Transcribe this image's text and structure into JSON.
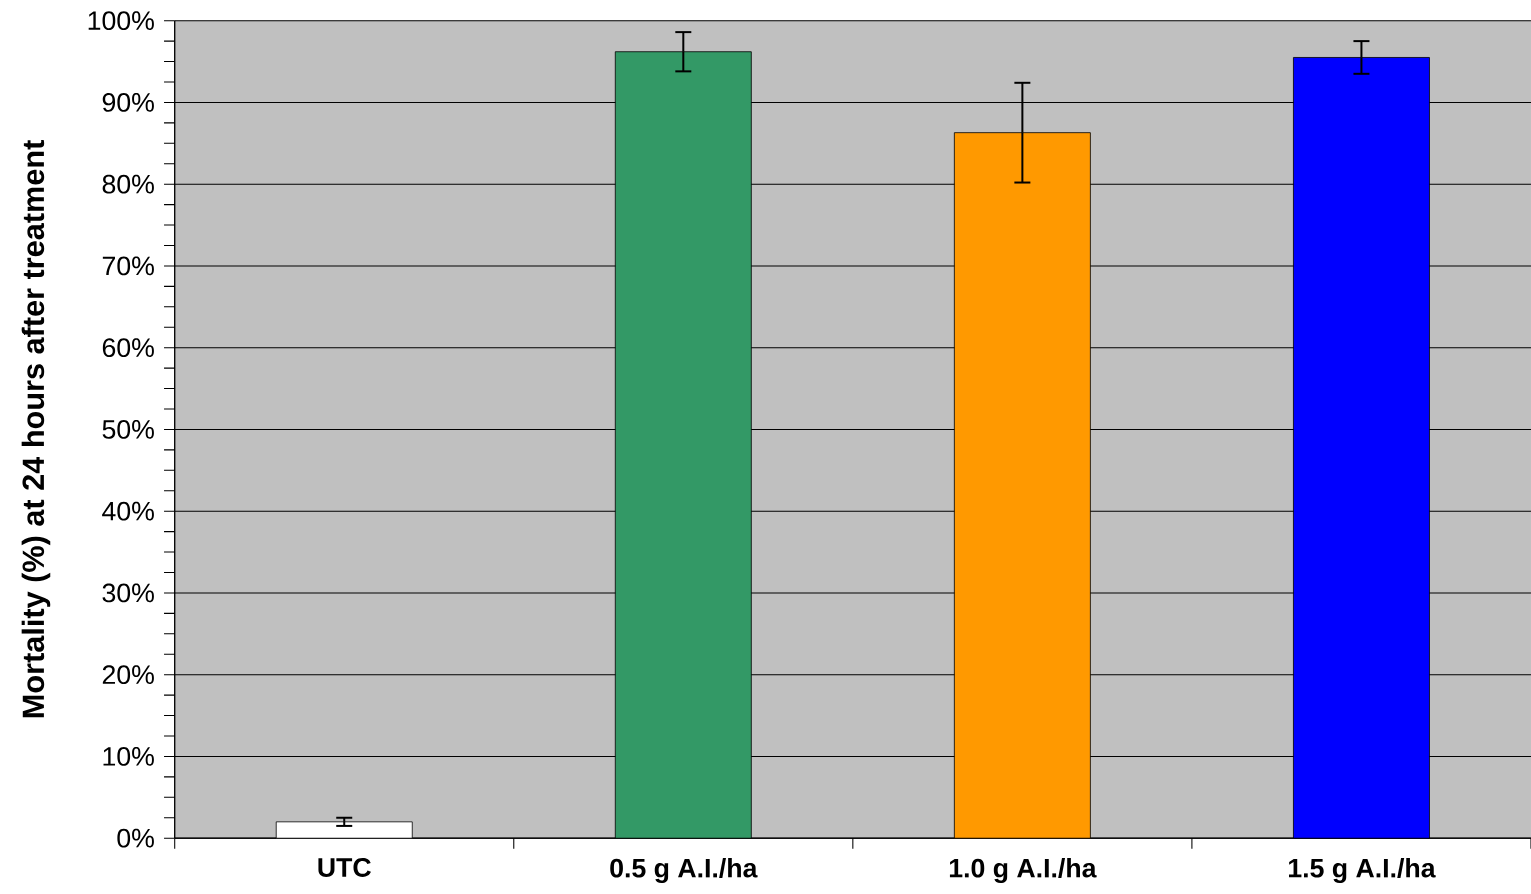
{
  "chart_data": {
    "type": "bar",
    "ylabel": "Mortality (%) at 24 hours after treatment",
    "categories": [
      "UTC",
      "0.5 g A.I./ha",
      "1.0 g A.I./ha",
      "1.5 g A.I./ha"
    ],
    "values": [
      2.0,
      96.2,
      86.3,
      95.5
    ],
    "colors": [
      "#ffffff",
      "#339966",
      "#ff9900",
      "#0000ff"
    ],
    "errors": [
      0.5,
      2.4,
      6.1,
      2.0
    ],
    "ylim": [
      0,
      100
    ],
    "yticks": [
      {
        "value": 0,
        "label": "0%"
      },
      {
        "value": 10,
        "label": "10%"
      },
      {
        "value": 20,
        "label": "20%"
      },
      {
        "value": 30,
        "label": "30%"
      },
      {
        "value": 40,
        "label": "40%"
      },
      {
        "value": 50,
        "label": "50%"
      },
      {
        "value": 60,
        "label": "60%"
      },
      {
        "value": 70,
        "label": "70%"
      },
      {
        "value": 80,
        "label": "80%"
      },
      {
        "value": 90,
        "label": "90%"
      },
      {
        "value": 100,
        "label": "100%"
      }
    ],
    "grid": "y"
  }
}
